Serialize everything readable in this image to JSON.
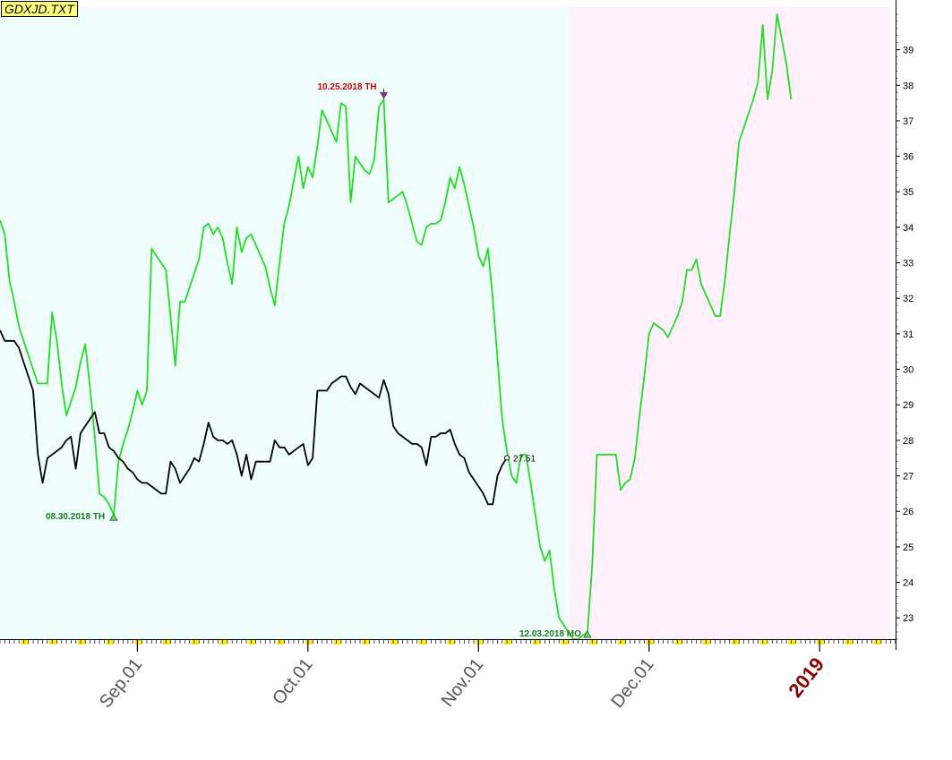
{
  "file_label": "GDXJD.TXT",
  "chart_data": {
    "type": "line",
    "ylim": [
      22.4,
      40.2
    ],
    "y_ticks": [
      23,
      24,
      25,
      26,
      27,
      28,
      29,
      30,
      31,
      32,
      33,
      34,
      35,
      36,
      37,
      38,
      39
    ],
    "x_tick_labels": [
      {
        "label": "Sep.01",
        "year_marker": false
      },
      {
        "label": "Oct.01",
        "year_marker": false
      },
      {
        "label": "Nov.01",
        "year_marker": false
      },
      {
        "label": "Dec.01",
        "year_marker": false
      },
      {
        "label": "2019",
        "year_marker": true
      }
    ],
    "shading": [
      {
        "from": 0,
        "to": 120,
        "color": "#f0fffd"
      },
      {
        "from": 120,
        "to": 188,
        "color": "#fff0fd"
      }
    ],
    "series": [
      {
        "color": "#22dd22",
        "values": [
          34.2,
          33.8,
          32.5,
          31.9,
          31.2,
          30.8,
          30.4,
          30.0,
          29.6,
          29.6,
          29.6,
          31.6,
          30.8,
          29.6,
          28.7,
          29.1,
          29.5,
          30.2,
          30.7,
          29.5,
          28.1,
          26.5,
          26.4,
          26.2,
          25.9,
          27.4,
          27.9,
          28.3,
          28.8,
          29.4,
          29.0,
          29.4,
          33.4,
          33.2,
          33.0,
          32.8,
          31.5,
          30.1,
          31.9,
          31.9,
          32.3,
          32.7,
          33.1,
          34.0,
          34.1,
          33.8,
          34.0,
          33.7,
          33.0,
          32.4,
          34.0,
          33.3,
          33.7,
          33.8,
          33.5,
          33.2,
          32.9,
          32.3,
          31.8,
          33.0,
          34.1,
          34.6,
          35.3,
          36.0,
          35.1,
          35.7,
          35.4,
          36.3,
          37.3,
          37.0,
          36.7,
          36.4,
          37.5,
          37.4,
          34.7,
          36.0,
          35.8,
          35.6,
          35.5,
          35.9,
          37.4,
          37.6,
          34.7,
          34.8,
          34.9,
          35.0,
          34.6,
          34.1,
          33.6,
          33.5,
          34.0,
          34.1,
          34.1,
          34.2,
          34.7,
          35.4,
          35.1,
          35.7,
          35.2,
          34.6,
          34.0,
          33.2,
          32.9,
          33.4,
          32.0,
          30.3,
          28.6,
          27.7,
          27.0,
          26.8,
          27.6,
          27.6,
          26.8,
          25.9,
          25.0,
          24.6,
          24.9,
          23.8,
          23.0,
          22.8,
          22.6,
          22.4,
          22.4,
          22.5,
          22.6,
          24.5,
          27.6,
          27.6,
          27.6,
          27.6,
          27.6,
          26.6,
          26.8,
          26.9,
          27.5,
          28.7,
          29.8,
          31.0,
          31.3,
          31.2,
          31.1,
          30.9,
          31.2,
          31.5,
          31.9,
          32.8,
          32.8,
          33.1,
          32.4,
          32.1,
          31.8,
          31.5,
          31.5,
          32.5,
          33.8,
          35.0,
          36.4,
          36.8,
          37.2,
          37.6,
          38.1,
          39.7,
          37.6,
          38.4,
          40.0,
          39.3,
          38.6,
          37.6
        ]
      },
      {
        "color": "#000000",
        "end_label": "27.51",
        "values": [
          31.1,
          30.8,
          30.8,
          30.8,
          30.6,
          30.2,
          29.8,
          29.4,
          27.6,
          26.8,
          27.5,
          27.6,
          27.7,
          27.8,
          28.0,
          28.1,
          27.2,
          28.2,
          28.4,
          28.6,
          28.8,
          28.2,
          28.2,
          27.8,
          27.7,
          27.5,
          27.4,
          27.2,
          27.1,
          26.9,
          26.8,
          26.8,
          26.7,
          26.6,
          26.5,
          26.5,
          27.4,
          27.2,
          26.8,
          27.0,
          27.2,
          27.5,
          27.4,
          27.9,
          28.5,
          28.1,
          28.0,
          28.0,
          27.9,
          28.0,
          27.6,
          27.0,
          27.6,
          26.9,
          27.4,
          27.4,
          27.4,
          27.4,
          28.0,
          27.8,
          27.8,
          27.6,
          27.7,
          27.8,
          27.9,
          27.3,
          27.5,
          29.4,
          29.4,
          29.4,
          29.6,
          29.7,
          29.8,
          29.8,
          29.5,
          29.3,
          29.6,
          29.5,
          29.4,
          29.3,
          29.2,
          29.7,
          29.3,
          28.4,
          28.2,
          28.1,
          28.0,
          27.9,
          27.9,
          27.8,
          27.3,
          28.1,
          28.1,
          28.2,
          28.2,
          28.3,
          27.9,
          27.6,
          27.5,
          27.1,
          26.9,
          26.7,
          26.5,
          26.2,
          26.2,
          27.0,
          27.3,
          27.51
        ]
      }
    ],
    "annotations": [
      {
        "text": "08.30.2018 TH",
        "series": 0,
        "index": 24,
        "kind": "low",
        "color": "#1a7a1a"
      },
      {
        "text": "10.25.2018 TH",
        "series": 0,
        "index": 81,
        "kind": "high",
        "color": "#cc0000"
      },
      {
        "text": "12.03.2018 MO",
        "series": 0,
        "index": 124,
        "kind": "low",
        "color": "#1a7a1a"
      }
    ]
  }
}
